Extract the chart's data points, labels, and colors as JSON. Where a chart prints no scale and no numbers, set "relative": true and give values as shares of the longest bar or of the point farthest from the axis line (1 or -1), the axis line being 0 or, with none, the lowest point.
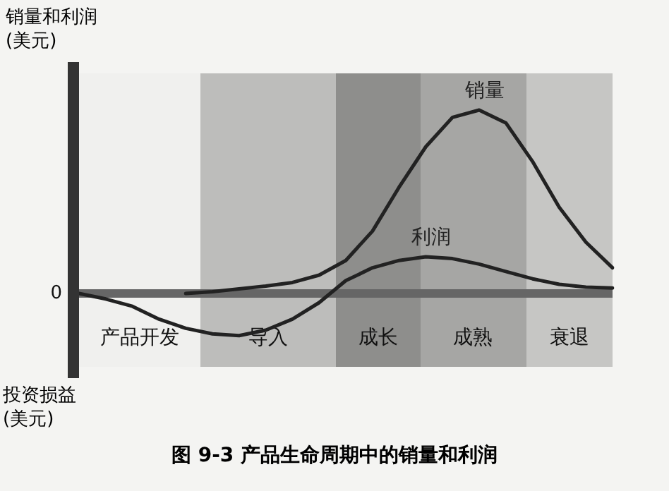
{
  "chart_data": {
    "type": "line",
    "title": "图 9-3   产品生命周期中的销量和利润",
    "ylabel": "销量和利润(美元)",
    "annotations": [
      "0",
      "投资损益(美元)",
      "产品开发",
      "导入",
      "成长",
      "成熟",
      "衰退"
    ],
    "relative": true,
    "marker": "none",
    "line_style": "solid",
    "categories": [
      null,
      null,
      null,
      null,
      null,
      null,
      null,
      null,
      null,
      null,
      null,
      null,
      null,
      null,
      null,
      null,
      null,
      null,
      null,
      null,
      null
    ],
    "series": [
      {
        "name": "销量",
        "color": "#222222",
        "values": [
          null,
          null,
          null,
          null,
          0,
          0.01,
          0.025,
          0.04,
          0.06,
          0.1,
          0.18,
          0.34,
          0.58,
          0.8,
          0.96,
          1,
          0.93,
          0.72,
          0.47,
          0.28,
          0.14
        ]
      },
      {
        "name": "利润",
        "color": "#222222",
        "values": [
          0,
          -0.03,
          -0.07,
          -0.14,
          -0.19,
          -0.22,
          -0.23,
          -0.2,
          -0.14,
          -0.05,
          0.07,
          0.14,
          0.18,
          0.2,
          0.19,
          0.16,
          0.12,
          0.08,
          0.05,
          0.035,
          0.03
        ]
      }
    ]
  }
}
